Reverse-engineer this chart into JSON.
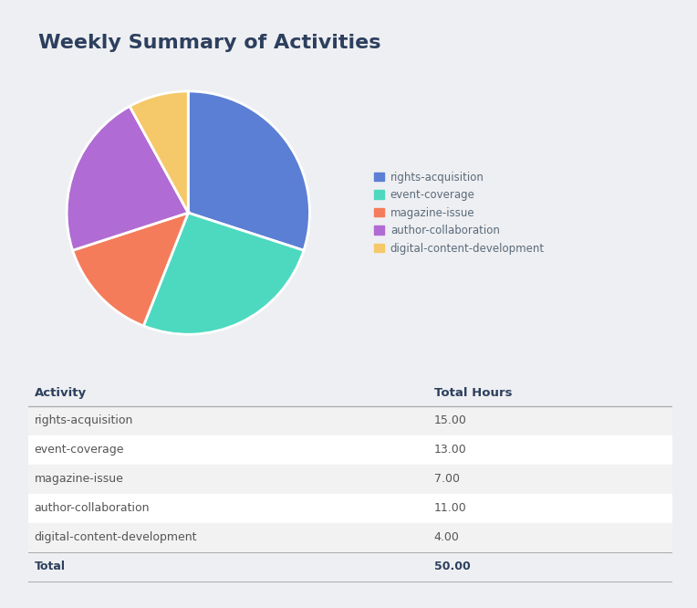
{
  "title": "Weekly Summary of Activities",
  "activities": [
    "rights-acquisition",
    "event-coverage",
    "magazine-issue",
    "author-collaboration",
    "digital-content-development"
  ],
  "hours": [
    15.0,
    13.0,
    7.0,
    11.0,
    4.0
  ],
  "total": 50.0,
  "colors": [
    "#5B7FD4",
    "#4DD9C0",
    "#F47C5A",
    "#B06BD4",
    "#F5C96A"
  ],
  "background_color": "#eeeff2",
  "card_color": "#ffffff",
  "title_color": "#2d3f5e",
  "title_fontsize": 16,
  "table_header_fontsize": 9.5,
  "table_body_fontsize": 9,
  "legend_fontsize": 8.5,
  "header_row": [
    "Activity",
    "Total Hours"
  ],
  "table_alt_color": "#f2f2f2",
  "table_white_color": "#ffffff",
  "table_line_color": "#cccccc",
  "col_split": 0.62
}
